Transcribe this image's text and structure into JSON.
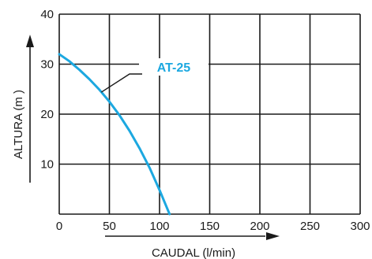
{
  "chart_data": {
    "type": "line",
    "xlabel": "CAUDAL (l/min)",
    "ylabel": "ALTURA (m  )",
    "xlim": [
      0,
      300
    ],
    "ylim": [
      0,
      40
    ],
    "x_ticks": [
      0,
      50,
      100,
      150,
      200,
      250,
      300
    ],
    "y_ticks": [
      10,
      20,
      30,
      40
    ],
    "grid": true,
    "series": [
      {
        "name": "AT-25",
        "color": "#1ca8e0",
        "x": [
          0,
          10,
          20,
          30,
          40,
          50,
          60,
          70,
          80,
          90,
          100,
          110
        ],
        "y": [
          32,
          30.6,
          28.9,
          27,
          24.9,
          22.5,
          19.8,
          16.7,
          13.2,
          9.3,
          4.8,
          0
        ]
      }
    ]
  }
}
